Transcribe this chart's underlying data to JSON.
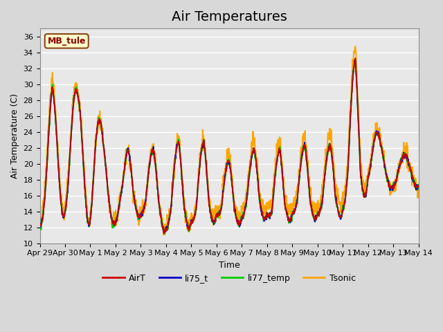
{
  "title": "Air Temperatures",
  "xlabel": "Time",
  "ylabel": "Air Temperature (C)",
  "ylim": [
    10,
    37
  ],
  "yticks": [
    10,
    12,
    14,
    16,
    18,
    20,
    22,
    24,
    26,
    28,
    30,
    32,
    34,
    36
  ],
  "x_tick_labels": [
    "Apr 29",
    "Apr 30",
    "May 1",
    "May 2",
    "May 3",
    "May 4",
    "May 5",
    "May 6",
    "May 7",
    "May 8",
    "May 9",
    "May 10",
    "May 11",
    "May 12",
    "May 13",
    "May 14"
  ],
  "annotation_text": "MB_tule",
  "annotation_box_facecolor": "#ffffcc",
  "annotation_box_edgecolor": "#8B4513",
  "line_colors": {
    "AirT": "#cc0000",
    "li75_t": "#0000cc",
    "li77_temp": "#00cc00",
    "Tsonic": "#ffa500"
  },
  "line_widths": {
    "AirT": 1.2,
    "li75_t": 1.2,
    "li77_temp": 1.5,
    "Tsonic": 1.5
  },
  "title_fontsize": 14,
  "label_fontsize": 9,
  "tick_fontsize": 8
}
